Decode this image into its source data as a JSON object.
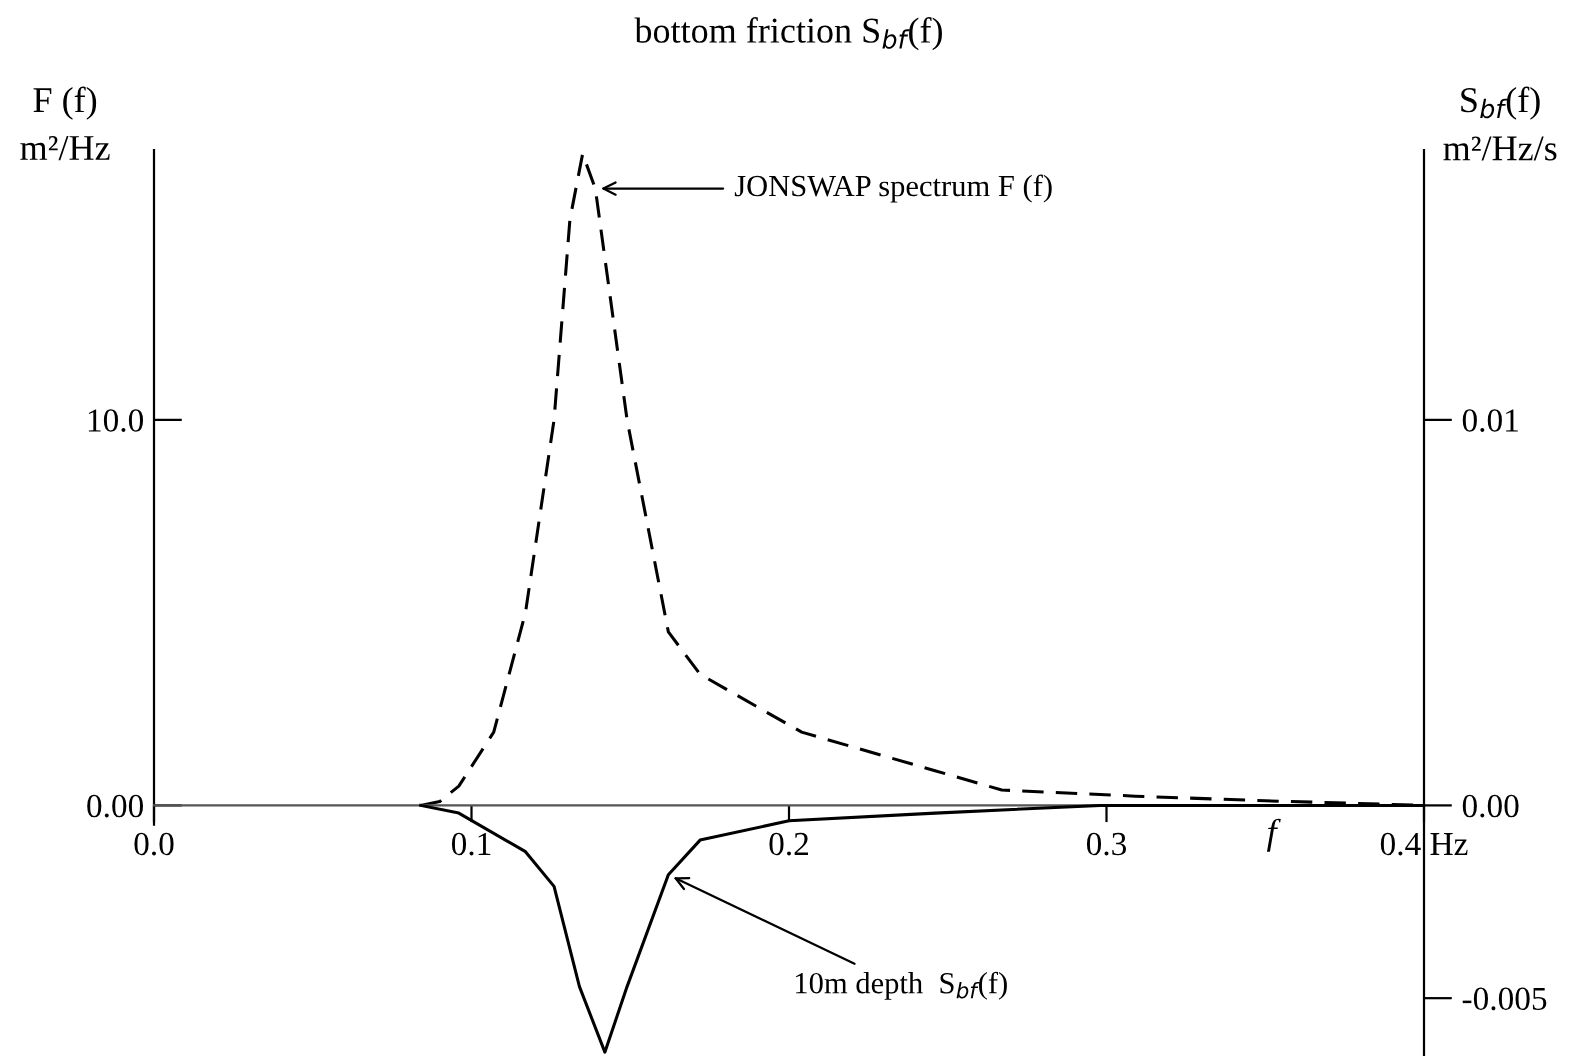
{
  "chart_data": {
    "type": "line",
    "title": "bottom friction S$_{bf}$(f)",
    "xlabel": "f",
    "ylabel": "F (f)\nm²/Hz",
    "y2label": "S$_{bf}$(f)\nm²/Hz/s",
    "xlim": [
      0,
      0.4
    ],
    "xticks": [
      {
        "value": 0,
        "label": "0.0"
      },
      0.1,
      0.2,
      0.3,
      {
        "value": 0.4,
        "label": "0.4 Hz"
      }
    ],
    "ylim": [
      -6.5,
      17
    ],
    "yticks": [
      {
        "value": 0,
        "label": "0.00"
      },
      {
        "value": 10,
        "label": "10.0"
      }
    ],
    "y2lim": [
      -0.0065,
      0.017
    ],
    "y2ticks": [
      {
        "value": 0,
        "label": "0.00"
      },
      0.01,
      -0.005
    ],
    "series": [
      {
        "color": "#000000",
        "line_style": "dashed",
        "x": [
          0.084,
          0.09,
          0.096,
          0.107,
          0.117,
          0.126,
          0.131,
          0.135,
          0.139,
          0.149,
          0.162,
          0.172,
          0.204,
          0.246,
          0.267,
          0.309,
          0.35,
          0.4
        ],
        "values": [
          0,
          0.1,
          0.5,
          1.9,
          5.0,
          10.0,
          15.2,
          16.9,
          16.0,
          10.0,
          4.5,
          3.4,
          1.9,
          0.9,
          0.4,
          0.24,
          0.12,
          0
        ]
      },
      {
        "color": "#000000",
        "line_style": "solid",
        "axis": "y2",
        "x": [
          0.084,
          0.096,
          0.117,
          0.126,
          0.134,
          0.142,
          0.149,
          0.162,
          0.172,
          0.2,
          0.246,
          0.298,
          0.4
        ],
        "values": [
          0,
          -0.0002,
          -0.0012,
          -0.0021,
          -0.0047,
          -0.0064,
          -0.0047,
          -0.0018,
          -0.0009,
          -0.0004,
          -0.0002,
          0,
          0
        ]
      }
    ],
    "annotations": [
      "JONSWAP spectrum F (f)",
      {
        "text": "10m depth  S$_{bf}$(f)",
        "x": 0.162,
        "y": -1.8
      }
    ]
  }
}
